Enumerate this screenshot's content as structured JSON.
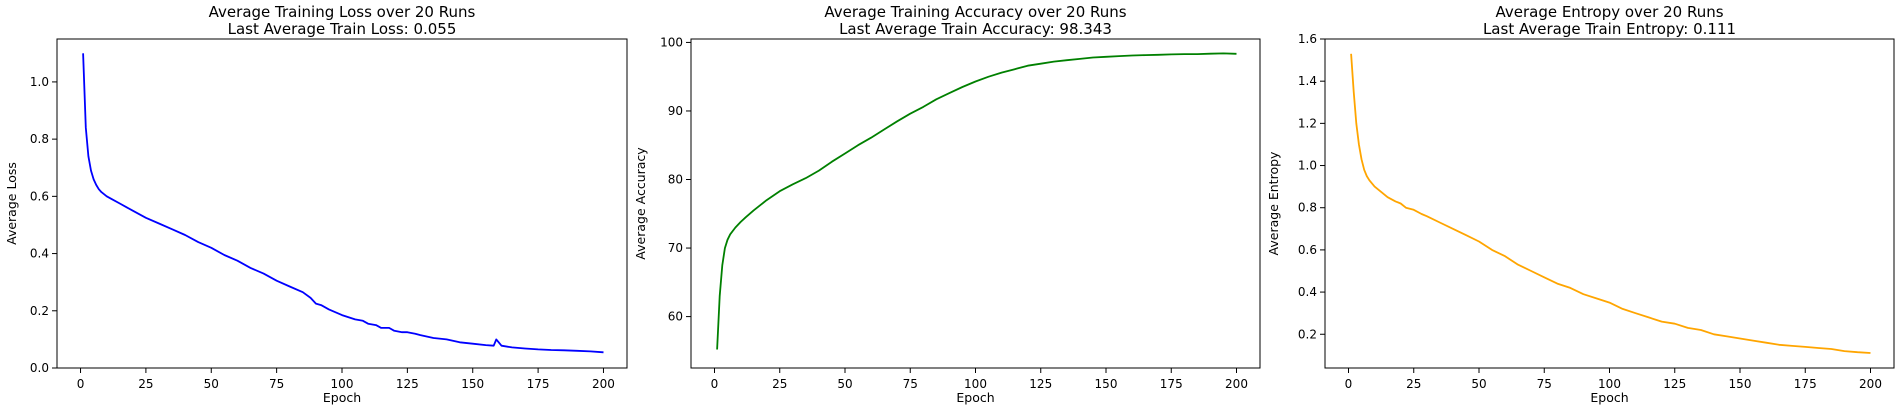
{
  "chart_data": [
    {
      "type": "line",
      "title": "Average Training Loss over 20 Runs",
      "subtitle": "Last Average Train Loss: 0.055",
      "xlabel": "Epoch",
      "ylabel": "Average Loss",
      "xlim": [
        -9,
        209
      ],
      "ylim": [
        0,
        1.15
      ],
      "xticks": [
        0,
        25,
        50,
        75,
        100,
        125,
        150,
        175,
        200
      ],
      "yticks": [
        0.0,
        0.2,
        0.4,
        0.6,
        0.8,
        1.0
      ],
      "ytick_labels": [
        "0.0",
        "0.2",
        "0.4",
        "0.6",
        "0.8",
        "1.0"
      ],
      "color": "#0000ff",
      "grid": false,
      "series": [
        {
          "x": [
            1,
            2,
            3,
            4,
            5,
            6,
            7,
            8,
            10,
            12,
            15,
            20,
            25,
            30,
            35,
            40,
            45,
            50,
            55,
            60,
            65,
            70,
            75,
            80,
            85,
            88,
            90,
            92,
            95,
            100,
            105,
            108,
            110,
            113,
            115,
            118,
            120,
            123,
            125,
            128,
            130,
            135,
            140,
            145,
            150,
            155,
            158,
            159,
            161,
            165,
            170,
            175,
            180,
            185,
            190,
            195,
            200
          ],
          "values": [
            1.1,
            0.84,
            0.74,
            0.69,
            0.66,
            0.64,
            0.625,
            0.615,
            0.6,
            0.59,
            0.575,
            0.55,
            0.525,
            0.505,
            0.485,
            0.465,
            0.44,
            0.42,
            0.395,
            0.375,
            0.35,
            0.33,
            0.305,
            0.285,
            0.265,
            0.245,
            0.225,
            0.22,
            0.205,
            0.185,
            0.17,
            0.165,
            0.155,
            0.15,
            0.14,
            0.14,
            0.13,
            0.125,
            0.125,
            0.12,
            0.115,
            0.105,
            0.1,
            0.09,
            0.085,
            0.08,
            0.078,
            0.1,
            0.078,
            0.072,
            0.068,
            0.065,
            0.063,
            0.062,
            0.06,
            0.058,
            0.055
          ]
        }
      ]
    },
    {
      "type": "line",
      "title": "Average Training Accuracy over 20 Runs",
      "subtitle": "Last Average Train Accuracy: 98.343",
      "xlabel": "Epoch",
      "ylabel": "Average Accuracy",
      "xlim": [
        -9,
        209
      ],
      "ylim": [
        52.5,
        100.5
      ],
      "xticks": [
        0,
        25,
        50,
        75,
        100,
        125,
        150,
        175,
        200
      ],
      "yticks": [
        60,
        70,
        80,
        90,
        100
      ],
      "ytick_labels": [
        "60",
        "70",
        "80",
        "90",
        "100"
      ],
      "color": "#008000",
      "grid": false,
      "series": [
        {
          "x": [
            1,
            2,
            3,
            4,
            5,
            6,
            8,
            10,
            12,
            15,
            20,
            25,
            30,
            35,
            40,
            45,
            50,
            55,
            60,
            65,
            70,
            75,
            80,
            85,
            90,
            95,
            100,
            105,
            110,
            115,
            120,
            125,
            130,
            135,
            140,
            145,
            150,
            155,
            160,
            165,
            170,
            175,
            180,
            185,
            190,
            195,
            200
          ],
          "values": [
            55.2,
            63,
            67.5,
            70,
            71.2,
            72,
            73,
            73.8,
            74.5,
            75.5,
            77,
            78.3,
            79.3,
            80.2,
            81.3,
            82.6,
            83.8,
            85,
            86.1,
            87.3,
            88.5,
            89.6,
            90.6,
            91.7,
            92.6,
            93.5,
            94.3,
            95,
            95.6,
            96.1,
            96.6,
            96.9,
            97.2,
            97.4,
            97.6,
            97.8,
            97.9,
            98,
            98.1,
            98.15,
            98.2,
            98.25,
            98.3,
            98.3,
            98.35,
            98.4,
            98.34
          ]
        }
      ]
    },
    {
      "type": "line",
      "title": "Average Entropy over 20 Runs",
      "subtitle": "Last Average Train Entropy: 0.111",
      "xlabel": "Epoch",
      "ylabel": "Average Entropy",
      "xlim": [
        -9,
        209
      ],
      "ylim": [
        0.04,
        1.6
      ],
      "xticks": [
        0,
        25,
        50,
        75,
        100,
        125,
        150,
        175,
        200
      ],
      "yticks": [
        0.2,
        0.4,
        0.6,
        0.8,
        1.0,
        1.2,
        1.4,
        1.6
      ],
      "ytick_labels": [
        "0.2",
        "0.4",
        "0.6",
        "0.8",
        "1.0",
        "1.2",
        "1.4",
        "1.6"
      ],
      "color": "#ffa500",
      "grid": false,
      "series": [
        {
          "x": [
            1,
            2,
            3,
            4,
            5,
            6,
            7,
            8,
            10,
            12,
            15,
            18,
            20,
            22,
            25,
            28,
            30,
            35,
            40,
            45,
            50,
            55,
            60,
            65,
            70,
            75,
            80,
            85,
            90,
            95,
            100,
            105,
            110,
            115,
            120,
            125,
            130,
            135,
            140,
            145,
            150,
            155,
            160,
            165,
            170,
            175,
            180,
            185,
            190,
            195,
            200
          ],
          "values": [
            1.53,
            1.35,
            1.2,
            1.1,
            1.03,
            0.98,
            0.95,
            0.93,
            0.9,
            0.88,
            0.85,
            0.83,
            0.82,
            0.8,
            0.79,
            0.77,
            0.76,
            0.73,
            0.7,
            0.67,
            0.64,
            0.6,
            0.57,
            0.53,
            0.5,
            0.47,
            0.44,
            0.42,
            0.39,
            0.37,
            0.35,
            0.32,
            0.3,
            0.28,
            0.26,
            0.25,
            0.23,
            0.22,
            0.2,
            0.19,
            0.18,
            0.17,
            0.16,
            0.15,
            0.145,
            0.14,
            0.135,
            0.13,
            0.12,
            0.115,
            0.111
          ]
        }
      ]
    }
  ]
}
